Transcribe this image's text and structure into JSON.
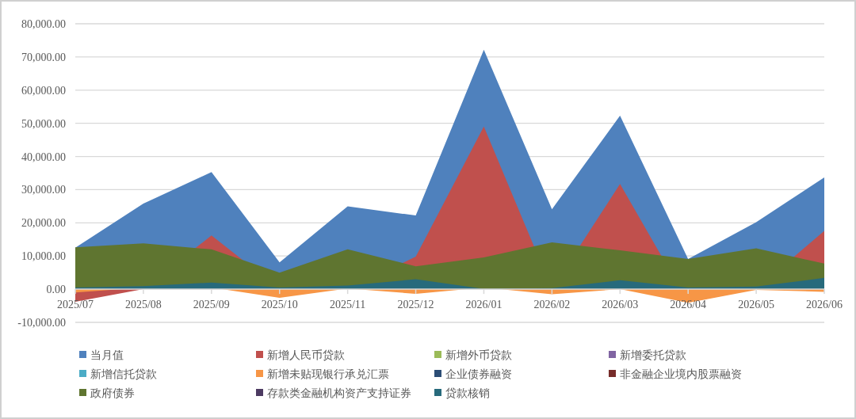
{
  "chart_data": {
    "type": "area",
    "categories": [
      "2025/07",
      "2025/08",
      "2025/09",
      "2025/10",
      "2025/11",
      "2025/12",
      "2026/01",
      "2026/02",
      "2026/03",
      "2026/04",
      "2026/05",
      "2026/06"
    ],
    "ylim": [
      -10000,
      80000
    ],
    "yticks": [
      {
        "value": -10000,
        "label": "-10,000.00"
      },
      {
        "value": 0,
        "label": "0.00"
      },
      {
        "value": 10000,
        "label": "10,000.00"
      },
      {
        "value": 20000,
        "label": "20,000.00"
      },
      {
        "value": 30000,
        "label": "30,000.00"
      },
      {
        "value": 40000,
        "label": "40,000.00"
      },
      {
        "value": 50000,
        "label": "50,000.00"
      },
      {
        "value": 60000,
        "label": "60,000.00"
      },
      {
        "value": 70000,
        "label": "70,000.00"
      },
      {
        "value": 80000,
        "label": "80,000.00"
      }
    ],
    "grid": "y",
    "legend": "bottom",
    "series": [
      {
        "name": "当月值",
        "color": "#4f81bd",
        "values": [
          12500,
          25800,
          35300,
          8100,
          25000,
          22200,
          72200,
          24100,
          52300,
          9100,
          20200,
          33700
        ]
      },
      {
        "name": "新增人民币贷款",
        "color": "#c0504d",
        "values": [
          -3800,
          null,
          16200,
          null,
          null,
          9800,
          49000,
          null,
          31700,
          -4000,
          null,
          17600
        ]
      },
      {
        "name": "新增外币贷款",
        "color": "#9bbb59",
        "values": [
          null,
          null,
          null,
          null,
          null,
          null,
          null,
          null,
          null,
          null,
          null,
          null
        ]
      },
      {
        "name": "新增委托贷款",
        "color": "#8064a2",
        "values": [
          null,
          null,
          null,
          null,
          null,
          null,
          null,
          null,
          null,
          null,
          null,
          null
        ]
      },
      {
        "name": "新增信托贷款",
        "color": "#4bacc6",
        "values": [
          null,
          null,
          null,
          null,
          null,
          null,
          null,
          null,
          null,
          null,
          null,
          null
        ]
      },
      {
        "name": "新增未贴现银行承兑汇票",
        "color": "#f79646",
        "values": [
          -1000,
          500,
          500,
          -2600,
          200,
          -1400,
          500,
          -1500,
          null,
          -4100,
          -200,
          -800
        ]
      },
      {
        "name": "企业债券融资",
        "color": "#2c4d75",
        "values": [
          null,
          null,
          null,
          null,
          null,
          null,
          null,
          null,
          null,
          null,
          null,
          null
        ]
      },
      {
        "name": "非金融企业境内股票融资",
        "color": "#772c2a",
        "values": [
          null,
          null,
          null,
          null,
          null,
          null,
          null,
          null,
          null,
          null,
          null,
          null
        ]
      },
      {
        "name": "政府债券",
        "color": "#5f7530",
        "values": [
          12600,
          13800,
          12000,
          5000,
          12000,
          6900,
          9600,
          14100,
          11700,
          9100,
          12300,
          7700
        ]
      },
      {
        "name": "存款类金融机构资产支持证券",
        "color": "#4d3b62",
        "values": [
          null,
          null,
          null,
          null,
          null,
          null,
          null,
          null,
          null,
          null,
          null,
          null
        ]
      },
      {
        "name": "贷款核销",
        "color": "#276a7c",
        "values": [
          500,
          900,
          2000,
          500,
          1100,
          3000,
          100,
          300,
          2700,
          500,
          800,
          3400
        ]
      }
    ]
  }
}
